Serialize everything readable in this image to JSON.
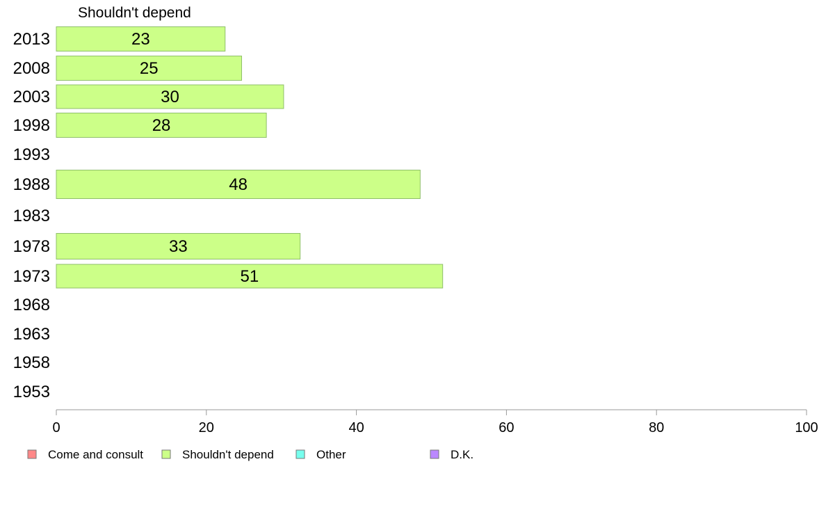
{
  "chart_data": {
    "type": "bar",
    "orientation": "horizontal",
    "title": "Shouldn't depend",
    "categories": [
      "2013",
      "2008",
      "2003",
      "1998",
      "1993",
      "1988",
      "1983",
      "1978",
      "1973",
      "1968",
      "1963",
      "1958",
      "1953"
    ],
    "series": [
      {
        "name": "Shouldn't depend",
        "color": "#ccff88",
        "values": [
          23,
          25,
          30,
          28,
          null,
          48,
          null,
          33,
          51,
          null,
          null,
          null,
          null
        ],
        "bar_values": [
          22.5,
          24.7,
          30.3,
          28,
          null,
          48.5,
          null,
          32.5,
          51.5,
          null,
          null,
          null,
          null
        ]
      }
    ],
    "xlim": [
      0,
      100
    ],
    "xticks": [
      0,
      20,
      40,
      60,
      80,
      100
    ],
    "grid": false,
    "legend": {
      "placement": "bottom",
      "entries": [
        {
          "label": "Come and consult",
          "color": "#ff8888"
        },
        {
          "label": "Shouldn't depend",
          "color": "#ccff88"
        },
        {
          "label": "Other",
          "color": "#77ffee"
        },
        {
          "label": "D.K.",
          "color": "#bb88ff"
        }
      ]
    }
  }
}
